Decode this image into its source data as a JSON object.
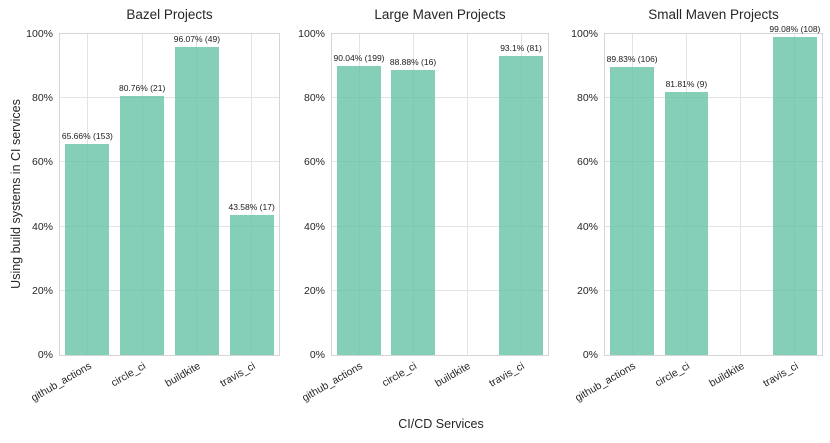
{
  "figure": {
    "ylabel": "Using build systems in CI services",
    "xlabel": "CI/CD Services",
    "ytick_labels": [
      "0%",
      "20%",
      "40%",
      "60%",
      "80%",
      "100%"
    ],
    "ytick_values": [
      0,
      20,
      40,
      60,
      80,
      100
    ]
  },
  "colors": {
    "bar_fill": "#66c2a5",
    "bar_fill_rendered": "#8bceb9",
    "grid": "#e2e2e7",
    "axis_border": "#d4d4d9",
    "text": "#262626"
  },
  "chart_data": [
    {
      "type": "bar",
      "title": "Bazel Projects",
      "categories": [
        "github_actions",
        "circle_ci",
        "buildkite",
        "travis_ci"
      ],
      "values": [
        65.66,
        80.76,
        96.07,
        43.58
      ],
      "counts": [
        153,
        21,
        49,
        17
      ],
      "bar_labels": [
        "65.66% (153)",
        "80.76% (21)",
        "96.07% (49)",
        "43.58% (17)"
      ],
      "ylim": [
        0,
        100
      ],
      "grid": "both"
    },
    {
      "type": "bar",
      "title": "Large Maven Projects",
      "categories": [
        "github_actions",
        "circle_ci",
        "buildkite",
        "travis_ci"
      ],
      "values": [
        90.04,
        88.88,
        null,
        93.1
      ],
      "counts": [
        199,
        16,
        null,
        81
      ],
      "bar_labels": [
        "90.04% (199)",
        "88.88% (16)",
        null,
        "93.1% (81)"
      ],
      "ylim": [
        0,
        100
      ],
      "grid": "both"
    },
    {
      "type": "bar",
      "title": "Small Maven Projects",
      "categories": [
        "github_actions",
        "circle_ci",
        "buildkite",
        "travis_ci"
      ],
      "values": [
        89.83,
        81.81,
        null,
        99.08
      ],
      "counts": [
        106,
        9,
        null,
        108
      ],
      "bar_labels": [
        "89.83% (106)",
        "81.81% (9)",
        null,
        "99.08% (108)"
      ],
      "ylim": [
        0,
        100
      ],
      "grid": "both"
    }
  ]
}
